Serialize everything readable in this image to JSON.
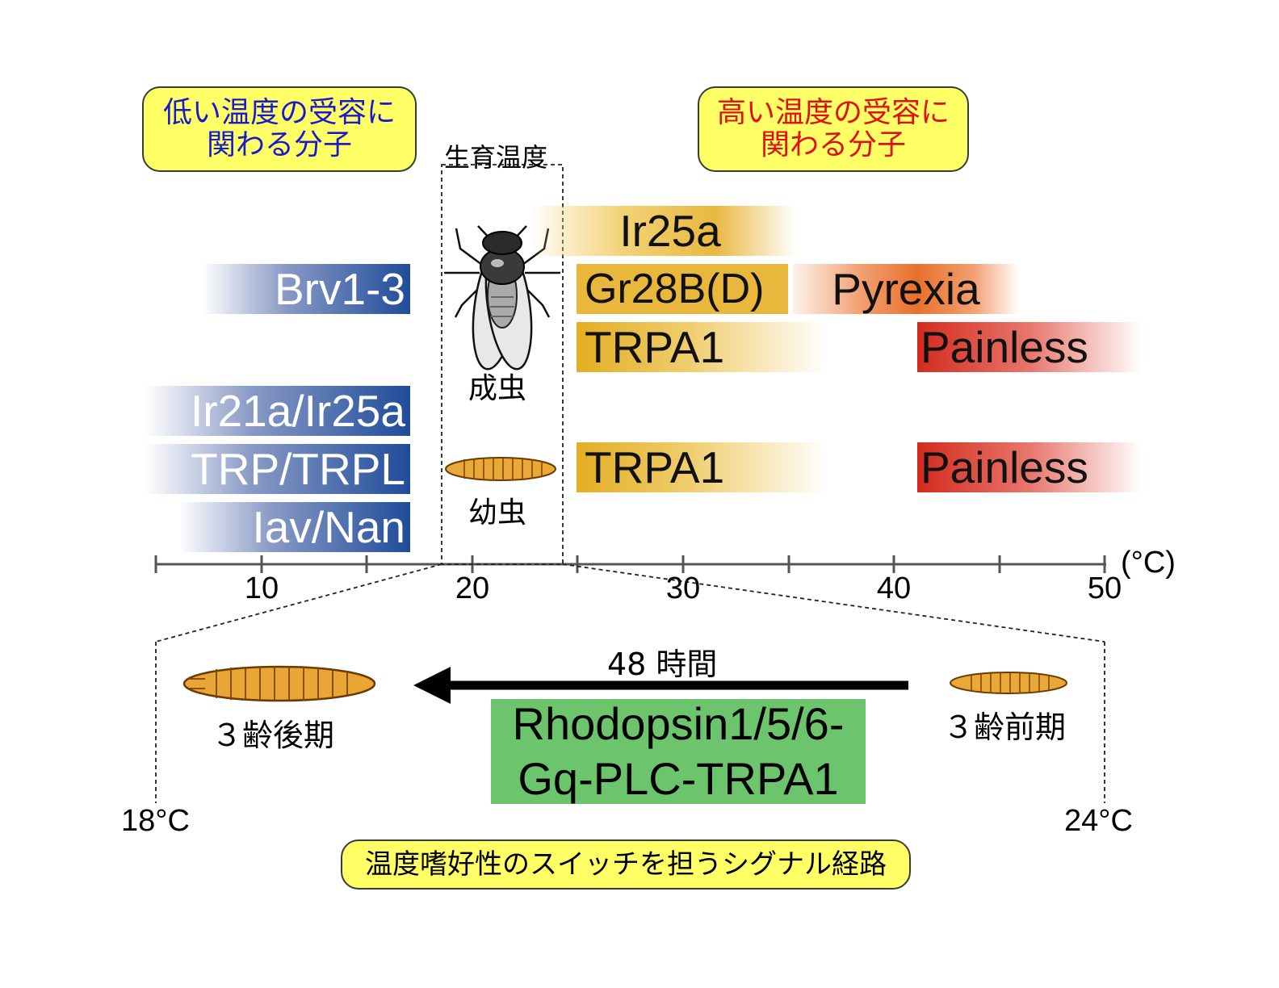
{
  "callouts": {
    "low": {
      "line1": "低い温度の受容に",
      "line2": "関わる分子",
      "color": "#1a1acc"
    },
    "high": {
      "line1": "高い温度の受容に",
      "line2": "関わる分子",
      "color": "#e01010"
    },
    "pathway": {
      "text": "温度嗜好性のスイッチを担うシグナル経路"
    }
  },
  "growth_label": "生育温度",
  "stages": {
    "adult": "成虫",
    "larva": "幼虫"
  },
  "cold_receptors": [
    "Brv1-3",
    "Ir21a/Ir25a",
    "TRP/TRPL",
    "Iav/Nan"
  ],
  "warm_receptors": {
    "ir25a": "Ir25a",
    "gr28b": "Gr28B(D)",
    "pyrexia": "Pyrexia",
    "trpa1_adult": "TRPA1",
    "painless_adult": "Painless",
    "trpa1_larva": "TRPA1",
    "painless_larva": "Painless"
  },
  "axis": {
    "ticks": [
      "10",
      "20",
      "30",
      "40",
      "50"
    ],
    "unit": "(°C)"
  },
  "zoom": {
    "duration": "48 時間",
    "late_instar": "３齢後期",
    "early_instar": "３齢前期",
    "pathway_line1": "Rhodopsin1/5/6-",
    "pathway_line2": "Gq-PLC-TRPA1",
    "temp_low": "18°C",
    "temp_high": "24°C"
  },
  "colors": {
    "cold": "#1f4c9a",
    "warm": "#e2ae22",
    "hot": "#d42b1e",
    "pathway": "#6cc46c",
    "callout": "#ffff66"
  }
}
